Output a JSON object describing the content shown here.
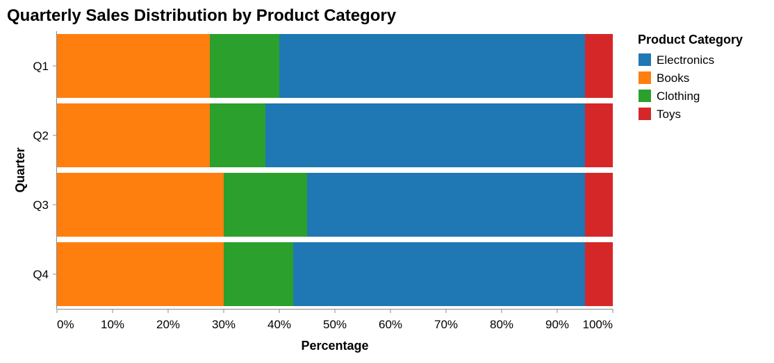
{
  "chart_data": {
    "type": "bar",
    "orientation": "horizontal",
    "stacked": "normalized",
    "title": "Quarterly Sales Distribution by Product Category",
    "xlabel": "Percentage",
    "ylabel": "Quarter",
    "xlim": [
      0,
      100
    ],
    "x_ticks": [
      "0%",
      "10%",
      "20%",
      "30%",
      "40%",
      "50%",
      "60%",
      "70%",
      "80%",
      "90%",
      "100%"
    ],
    "categories": [
      "Q1",
      "Q2",
      "Q3",
      "Q4"
    ],
    "stack_order": [
      "Books",
      "Clothing",
      "Electronics",
      "Toys"
    ],
    "series": [
      {
        "name": "Electronics",
        "color": "#1f77b4",
        "values": [
          55,
          57.5,
          50,
          52.5
        ]
      },
      {
        "name": "Books",
        "color": "#ff7f0e",
        "values": [
          27.5,
          27.5,
          30,
          30
        ]
      },
      {
        "name": "Clothing",
        "color": "#2ca02c",
        "values": [
          12.5,
          10,
          15,
          12.5
        ]
      },
      {
        "name": "Toys",
        "color": "#d62728",
        "values": [
          5,
          5,
          5,
          5
        ]
      }
    ],
    "legend": {
      "title": "Product Category",
      "position": "right"
    },
    "grid": false
  }
}
